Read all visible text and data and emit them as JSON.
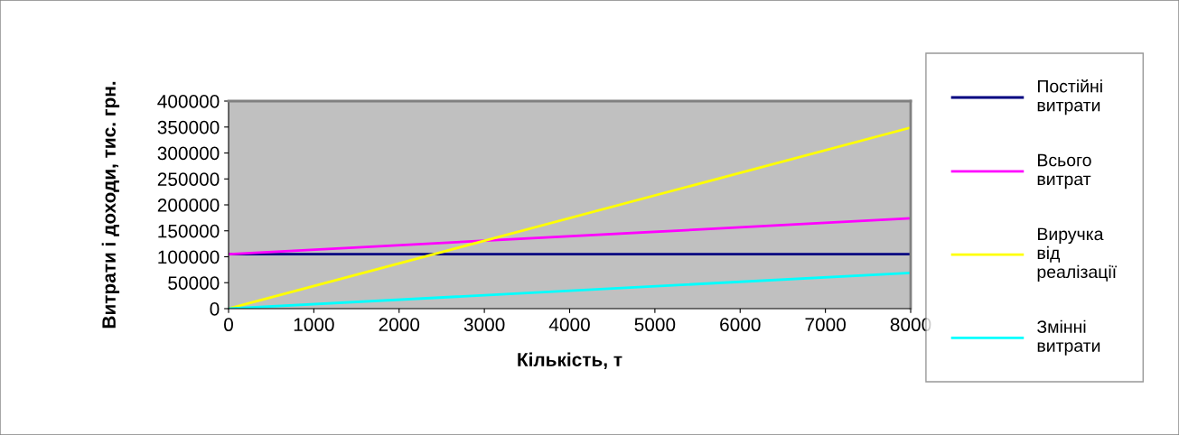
{
  "chart_data": {
    "type": "line",
    "xlabel": "Кількість, т",
    "ylabel": "Витрати і доходи, тис. грн.",
    "x": [
      0,
      8000
    ],
    "series": [
      {
        "name": "Постійні витрати",
        "color": "#000080",
        "values": [
          105000,
          105000
        ]
      },
      {
        "name": "Всього витрат",
        "color": "#ff00ff",
        "values": [
          105000,
          174000
        ]
      },
      {
        "name": "Виручка від реалізації",
        "color": "#ffff00",
        "values": [
          0,
          349000
        ]
      },
      {
        "name": "Змінні витрати",
        "color": "#00ffff",
        "values": [
          0,
          69000
        ]
      }
    ],
    "xlim": [
      0,
      8000
    ],
    "xticks": [
      0,
      1000,
      2000,
      3000,
      4000,
      5000,
      6000,
      7000,
      8000
    ],
    "ylim": [
      0,
      400000
    ],
    "yticks": [
      0,
      50000,
      100000,
      150000,
      200000,
      250000,
      300000,
      350000,
      400000
    ],
    "grid": false,
    "legend": "right",
    "marker": "none",
    "line_style": "solid"
  }
}
